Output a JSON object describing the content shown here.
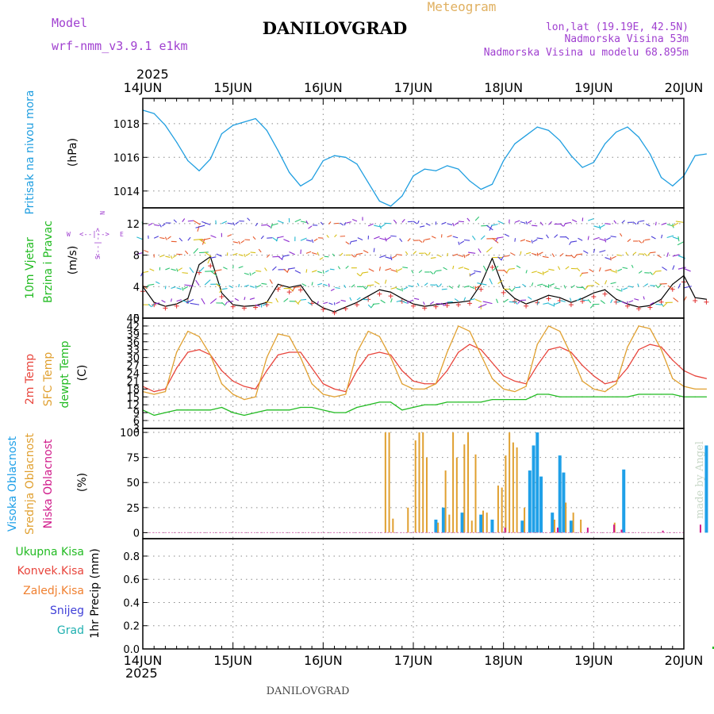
{
  "header": {
    "model_label": "Model",
    "model_name": "wrf-nmm_v3.9.1 e1km",
    "title": "DANILOVGRAD",
    "meteogram_label": "Meteogram",
    "lonlat": "lon,lat (19.19E, 42.5N)",
    "elevation": "Nadmorska Visina 53m",
    "model_elevation": "Nadmorska Visina u modelu 68.895m",
    "year_top": "2025",
    "year_bottom": "2025",
    "footer_title": "DANILOVGRAD",
    "credit": "made by Angel"
  },
  "colors": {
    "pressure": "#1f9ee0",
    "wind_speed": "#000000",
    "temp_2m": "#e8453c",
    "sfc_temp": "#e0a030",
    "dewpoint": "#22bb22",
    "cloud_high": "#1fa0e8",
    "cloud_mid": "#e0a030",
    "cloud_low": "#d01a8a",
    "precip_total": "#22bb22",
    "compass": "#a040d0"
  },
  "date_axis": [
    "14JUN",
    "15JUN",
    "16JUN",
    "17JUN",
    "18JUN",
    "19JUN",
    "20JUN"
  ],
  "panels": {
    "pressure": {
      "label_main": "Pritisak na nivou mora",
      "unit": "(hPa)",
      "ticks": [
        "1014",
        "1016",
        "1018"
      ]
    },
    "wind": {
      "label_a": "10m Vjetar",
      "label_b": "Brzina i Pravac",
      "unit": "(m/s)",
      "ticks": [
        "0",
        "4",
        "8",
        "12"
      ],
      "compass_n": "N",
      "compass_s": "S",
      "compass_w": "W",
      "compass_e": "E",
      "compass_h": "<--|-->",
      "compass_v": "<--|-->"
    },
    "temperature": {
      "label_a": "2m Temp",
      "label_b": "SFC Temp",
      "label_c": "dewpt Temp",
      "unit": "(C)",
      "ticks": [
        "3",
        "6",
        "9",
        "12",
        "15",
        "18",
        "21",
        "24",
        "27",
        "30",
        "33",
        "36",
        "39",
        "42",
        "45"
      ]
    },
    "clouds": {
      "label_a": "Visoka Oblacnost",
      "label_b": "Srednja Oblacnost",
      "label_c": "Niska Oblacnost",
      "unit": "(%)",
      "ticks": [
        "0",
        "25",
        "50",
        "75",
        "100"
      ]
    },
    "precip": {
      "legend_total": "Ukupna Kisa",
      "legend_conv": "Konvek.Kisa",
      "legend_frz": "Zaledj.Kisa",
      "legend_snow": "Snijeg",
      "legend_grad": "Grad",
      "unit": "1hr Precip (mm)",
      "ticks": [
        "0.0",
        "0.2",
        "0.4",
        "0.6",
        "0.8"
      ]
    }
  },
  "chart_data": [
    {
      "type": "line",
      "name": "pressure",
      "x_start": "2025-06-14 00:00",
      "x_step_hours": 3,
      "ylabel": "(hPa)",
      "ylim": [
        1013,
        1019.5
      ],
      "series": [
        {
          "name": "Pritisak na nivou mora",
          "values": [
            1018.8,
            1018.6,
            1017.9,
            1016.9,
            1015.8,
            1015.2,
            1015.9,
            1017.4,
            1017.9,
            1018.1,
            1018.3,
            1017.6,
            1016.4,
            1015.1,
            1014.3,
            1014.7,
            1015.8,
            1016.1,
            1016.0,
            1015.6,
            1014.5,
            1013.4,
            1013.1,
            1013.7,
            1014.9,
            1015.3,
            1015.2,
            1015.5,
            1015.3,
            1014.6,
            1014.1,
            1014.4,
            1015.8,
            1016.8,
            1017.3,
            1017.8,
            1017.6,
            1017.0,
            1016.1,
            1015.4,
            1015.7,
            1016.8,
            1017.5,
            1017.8,
            1017.2,
            1016.2,
            1014.8,
            1014.3,
            1014.9,
            1016.1,
            1016.2
          ]
        }
      ]
    },
    {
      "type": "line",
      "name": "wind",
      "x_start": "2025-06-14 00:00",
      "x_step_hours": 3,
      "ylabel": "(m/s)",
      "ylim": [
        0,
        14
      ],
      "series": [
        {
          "name": "10m Vjetar Brzina",
          "values": [
            4.0,
            2.0,
            1.5,
            1.8,
            2.5,
            6.8,
            7.8,
            3.2,
            1.7,
            1.5,
            1.6,
            2.0,
            4.3,
            3.9,
            4.2,
            2.2,
            1.3,
            0.8,
            1.4,
            2.0,
            2.8,
            3.6,
            3.3,
            2.5,
            1.8,
            1.5,
            1.7,
            1.9,
            2.0,
            2.2,
            4.3,
            7.6,
            3.8,
            2.5,
            1.8,
            2.3,
            2.9,
            2.6,
            2.0,
            2.5,
            3.2,
            3.6,
            2.4,
            1.8,
            1.4,
            1.6,
            2.4,
            4.3,
            5.4,
            2.6,
            2.4
          ]
        }
      ]
    },
    {
      "type": "line",
      "name": "temperature",
      "x_start": "2025-06-14 00:00",
      "x_step_hours": 3,
      "ylabel": "(C)",
      "ylim": [
        3,
        45
      ],
      "series": [
        {
          "name": "2m Temp",
          "values": [
            19,
            17,
            18,
            26,
            32,
            33,
            31,
            25,
            21,
            19,
            18,
            25,
            31,
            32,
            32,
            26,
            20,
            18,
            17,
            25,
            31,
            32,
            31,
            25,
            21,
            20,
            20,
            25,
            32,
            35,
            33,
            28,
            23,
            21,
            20,
            27,
            33,
            34,
            32,
            27,
            23,
            20,
            21,
            26,
            33,
            35,
            34,
            29,
            25,
            23,
            22
          ]
        },
        {
          "name": "SFC Temp",
          "values": [
            17,
            16,
            17,
            32,
            40,
            38,
            31,
            20,
            16,
            14,
            15,
            30,
            39,
            38,
            30,
            20,
            16,
            15,
            16,
            32,
            40,
            38,
            30,
            20,
            18,
            18,
            20,
            32,
            42,
            40,
            31,
            22,
            18,
            17,
            19,
            35,
            42,
            40,
            31,
            21,
            18,
            17,
            20,
            34,
            42,
            41,
            33,
            22,
            19,
            18,
            18
          ]
        },
        {
          "name": "dewpt Temp",
          "values": [
            10,
            8,
            9,
            10,
            10,
            10,
            10,
            11,
            9,
            8,
            9,
            10,
            10,
            10,
            11,
            11,
            10,
            9,
            9,
            11,
            12,
            13,
            13,
            10,
            11,
            12,
            12,
            13,
            13,
            13,
            13,
            14,
            14,
            14,
            14,
            16,
            16,
            15,
            15,
            15,
            15,
            15,
            15,
            15,
            16,
            16,
            16,
            16,
            15,
            15,
            15
          ]
        }
      ]
    },
    {
      "type": "bar",
      "name": "clouds",
      "ylabel": "(%)",
      "ylim": [
        0,
        100
      ],
      "x_unit": "hours from 2025-06-14 00:00",
      "series": [
        {
          "name": "Visoka Oblacnost",
          "points": [
            [
              78,
              13
            ],
            [
              80,
              25
            ],
            [
              85,
              20
            ],
            [
              90,
              18
            ],
            [
              93,
              13
            ],
            [
              101,
              12
            ],
            [
              103,
              62
            ],
            [
              104,
              87
            ],
            [
              105,
              100
            ],
            [
              106,
              56
            ],
            [
              109,
              20
            ],
            [
              111,
              77
            ],
            [
              112,
              60
            ],
            [
              114,
              12
            ],
            [
              128,
              63
            ],
            [
              150,
              87
            ],
            [
              155,
              10
            ]
          ]
        },
        {
          "name": "Srednja Oblacnost",
          "points": [
            [
              65,
              100
            ],
            [
              66,
              100
            ],
            [
              67,
              14
            ],
            [
              71,
              25
            ],
            [
              73,
              92
            ],
            [
              74,
              100
            ],
            [
              75,
              100
            ],
            [
              76,
              75
            ],
            [
              79,
              10
            ],
            [
              81,
              62
            ],
            [
              82,
              18
            ],
            [
              83,
              100
            ],
            [
              84,
              75
            ],
            [
              86,
              88
            ],
            [
              87,
              100
            ],
            [
              88,
              12
            ],
            [
              89,
              78
            ],
            [
              91,
              22
            ],
            [
              92,
              20
            ],
            [
              95,
              47
            ],
            [
              96,
              45
            ],
            [
              97,
              77
            ],
            [
              98,
              100
            ],
            [
              99,
              90
            ],
            [
              100,
              85
            ],
            [
              102,
              25
            ],
            [
              110,
              13
            ],
            [
              113,
              30
            ],
            [
              115,
              20
            ],
            [
              117,
              13
            ],
            [
              126,
              10
            ],
            [
              153,
              30
            ],
            [
              154,
              25
            ],
            [
              155,
              12
            ]
          ]
        },
        {
          "name": "Niska Oblacnost",
          "points": [
            [
              96,
              5
            ],
            [
              110,
              5
            ],
            [
              118,
              5
            ],
            [
              125,
              8
            ],
            [
              127,
              3
            ],
            [
              138,
              2
            ],
            [
              148,
              8
            ],
            [
              152,
              12
            ],
            [
              154,
              9
            ]
          ]
        }
      ]
    },
    {
      "type": "bar",
      "name": "precip",
      "ylabel": "1hr Precip (mm)",
      "ylim": [
        0,
        0.95
      ],
      "x_unit": "hours from 2025-06-14 00:00",
      "series": [
        {
          "name": "Ukupna Kisa",
          "points": [
            [
              152,
              0.02
            ],
            [
              153,
              0.02
            ]
          ]
        },
        {
          "name": "Konvek.Kisa",
          "points": []
        },
        {
          "name": "Zaledj.Kisa",
          "points": []
        },
        {
          "name": "Snijeg",
          "points": []
        },
        {
          "name": "Grad",
          "points": []
        }
      ]
    }
  ]
}
